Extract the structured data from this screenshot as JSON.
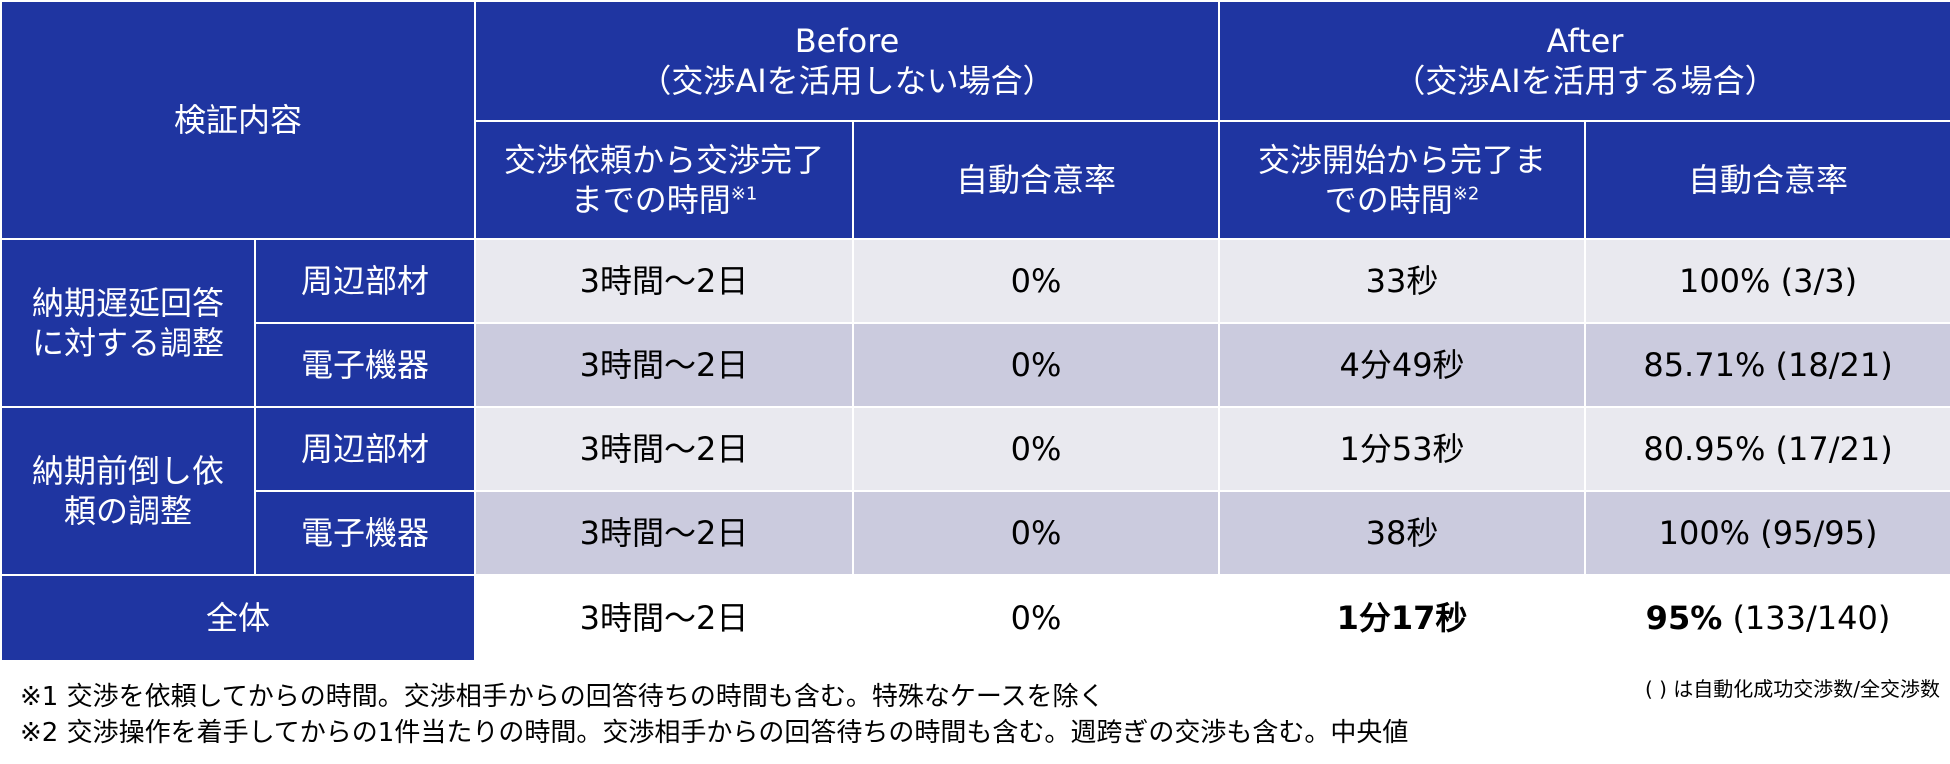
{
  "header": {
    "verification": "検証内容",
    "before_title": "Before",
    "before_sub": "（交渉AIを活用しない場合）",
    "after_title": "After",
    "after_sub": "（交渉AIを活用する場合）",
    "before_time_line1": "交渉依頼から交渉完了",
    "before_time_line2": "までの時間",
    "before_time_mark": "※1",
    "before_rate": "自動合意率",
    "after_time_line1": "交渉開始から完了ま",
    "after_time_line2": "での時間",
    "after_time_mark": "※2",
    "after_rate": "自動合意率"
  },
  "groups": [
    {
      "line1": "納期遅延回答",
      "line2": "に対する調整",
      "rows": [
        {
          "category": "周辺部材",
          "before_time": "3時間〜2日",
          "before_rate": "0%",
          "after_time": "33秒",
          "after_rate": "100% (3/3)"
        },
        {
          "category": "電子機器",
          "before_time": "3時間〜2日",
          "before_rate": "0%",
          "after_time": "4分49秒",
          "after_rate": "85.71% (18/21)"
        }
      ]
    },
    {
      "line1": "納期前倒し依",
      "line2": "頼の調整",
      "rows": [
        {
          "category": "周辺部材",
          "before_time": "3時間〜2日",
          "before_rate": "0%",
          "after_time": "1分53秒",
          "after_rate": "80.95% (17/21)"
        },
        {
          "category": "電子機器",
          "before_time": "3時間〜2日",
          "before_rate": "0%",
          "after_time": "38秒",
          "after_rate": "100% (95/95)"
        }
      ]
    }
  ],
  "total": {
    "label": "全体",
    "before_time": "3時間〜2日",
    "before_rate": "0%",
    "after_time": "1分17秒",
    "after_rate_bold": "95%",
    "after_rate_detail": " (133/140)"
  },
  "legend": "( ) は自動化成功交渉数/全交渉数",
  "notes": [
    "※1 交渉を依頼してからの時間。交渉相手からの回答待ちの時間も含む。特殊なケースを除く",
    "※2 交渉操作を着手してからの1件当たりの時間。交渉相手からの回答待ちの時間も含む。週跨ぎの交渉も含む。中央値"
  ]
}
